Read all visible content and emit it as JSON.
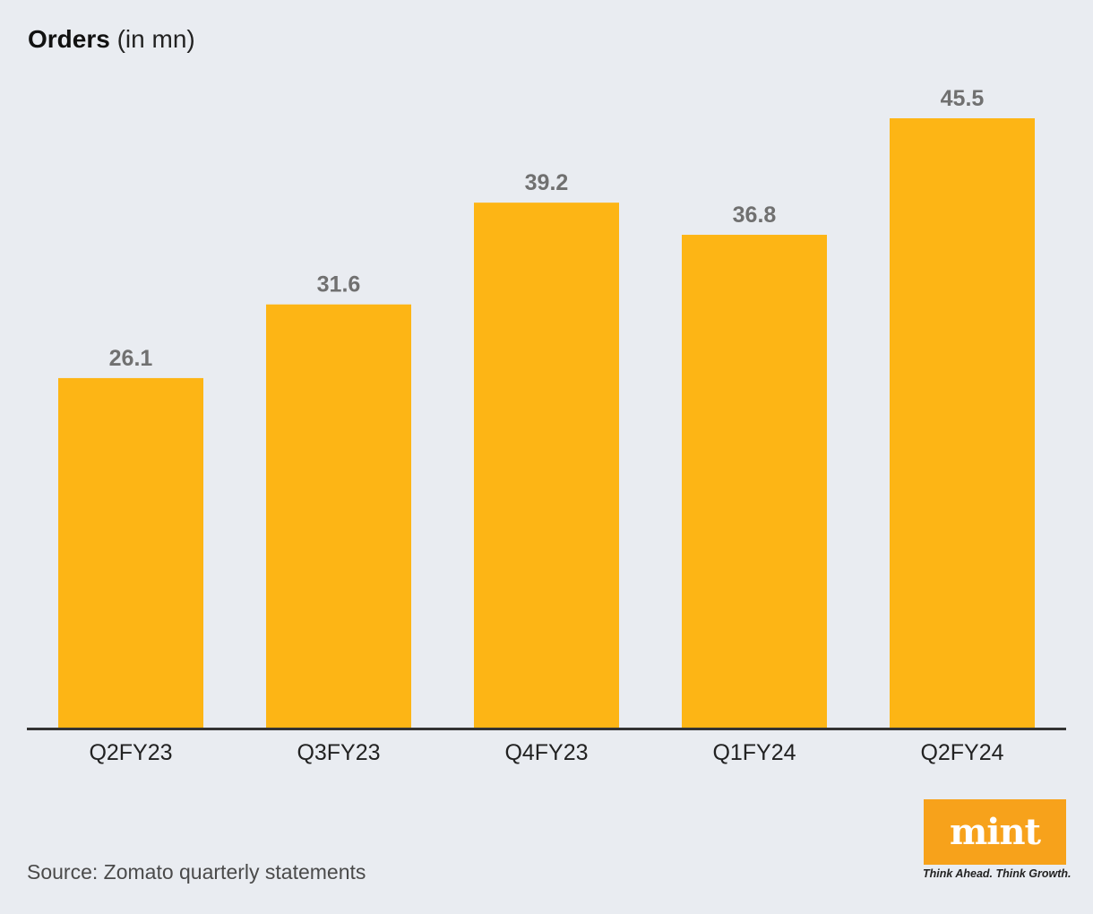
{
  "title": {
    "bold": "Orders",
    "unit": "(in mn)"
  },
  "chart_data": {
    "type": "bar",
    "categories": [
      "Q2FY23",
      "Q3FY23",
      "Q4FY23",
      "Q1FY24",
      "Q2FY24"
    ],
    "values": [
      26.1,
      31.6,
      39.2,
      36.8,
      45.5
    ],
    "data_labels": [
      "26.1",
      "31.6",
      "39.2",
      "36.8",
      "45.5"
    ],
    "title": "Orders (in mn)",
    "xlabel": "",
    "ylabel": "",
    "ylim": [
      0,
      45.5
    ],
    "grid": false,
    "bar_color": "#fdb515"
  },
  "source": "Source: Zomato quarterly statements",
  "logo": {
    "name": "mint",
    "tagline": "Think Ahead. Think Growth.",
    "color": "#f7a21b"
  }
}
